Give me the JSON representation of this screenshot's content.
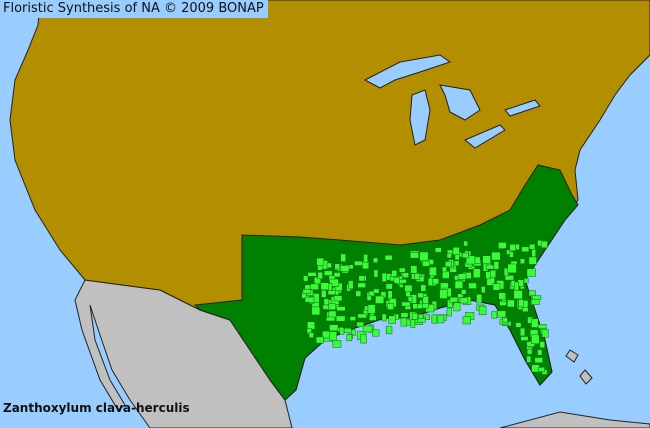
{
  "map": {
    "title": "Floristic Synthesis of NA © 2009 BONAP",
    "species": "Zanthoxylum clava-herculis",
    "colors": {
      "water": "#99ccff",
      "present_state": "#b38f00",
      "species_present_state": "#008000",
      "species_present_county": "#33ff33",
      "outside_region": "#c0c0c0",
      "borders": "#333333"
    }
  }
}
